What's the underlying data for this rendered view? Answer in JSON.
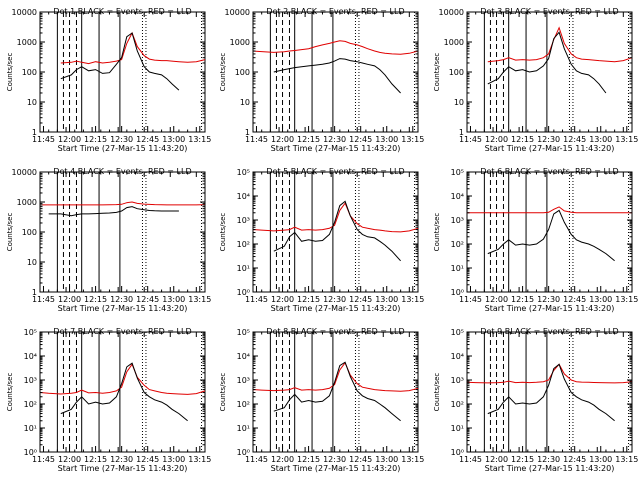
{
  "figure": {
    "xtick_labels": [
      "11:45",
      "12:00",
      "12:15",
      "12:30",
      "12:45",
      "13:00",
      "13:15"
    ],
    "xlabel": "Start Time (27-Mar-15 11:43:20)",
    "ylabel": "Counts/sec",
    "colors": {
      "events": "#000000",
      "lld": "#e00000",
      "axes": "#000000"
    }
  },
  "chart_data": [
    {
      "type": "line",
      "title": "Det 1  BLACK = Events,  RED = LLD",
      "xlabel": "Start Time (27-Mar-15 11:43:20)",
      "ylabel": "Counts/sec",
      "xlim": [
        0,
        95
      ],
      "ylim": [
        1,
        10000
      ],
      "log_y": true,
      "yticks": [
        1,
        10,
        100,
        1000,
        10000
      ],
      "ytick_labels": [
        "1",
        "10",
        "100",
        "1000",
        "10000"
      ],
      "x": [
        0,
        5,
        12,
        18,
        21,
        24,
        28,
        32,
        36,
        40,
        44,
        47,
        50,
        53,
        56,
        60,
        63,
        66,
        70,
        73,
        76,
        80,
        85,
        90,
        95
      ],
      "series": [
        {
          "name": "Events",
          "color": "#000000",
          "values": [
            null,
            null,
            60,
            80,
            120,
            150,
            110,
            120,
            90,
            95,
            180,
            300,
            1500,
            2000,
            500,
            150,
            100,
            90,
            80,
            60,
            40,
            25,
            null,
            null,
            null
          ]
        },
        {
          "name": "LLD",
          "color": "#e00000",
          "values": [
            null,
            null,
            200,
            210,
            230,
            210,
            190,
            220,
            200,
            210,
            230,
            260,
            900,
            2000,
            700,
            350,
            270,
            250,
            240,
            240,
            230,
            220,
            210,
            220,
            260
          ]
        }
      ]
    },
    {
      "type": "line",
      "title": "Det 2  BLACK = Events,  RED = LLD",
      "xlabel": "Start Time (27-Mar-15 11:43:20)",
      "ylabel": "Counts/sec",
      "xlim": [
        0,
        95
      ],
      "ylim": [
        1,
        10000
      ],
      "log_y": true,
      "yticks": [
        1,
        10,
        100,
        1000,
        10000
      ],
      "ytick_labels": [
        "1",
        "10",
        "100",
        "1000",
        "10000"
      ],
      "x": [
        0,
        5,
        12,
        18,
        21,
        24,
        28,
        32,
        36,
        40,
        44,
        47,
        50,
        53,
        56,
        60,
        63,
        66,
        70,
        73,
        76,
        80,
        85,
        90,
        95
      ],
      "series": [
        {
          "name": "Events",
          "color": "#000000",
          "values": [
            null,
            null,
            100,
            120,
            130,
            140,
            150,
            160,
            170,
            180,
            200,
            230,
            280,
            270,
            240,
            220,
            200,
            180,
            160,
            120,
            80,
            40,
            20,
            null,
            null
          ]
        },
        {
          "name": "LLD",
          "color": "#e00000",
          "values": [
            500,
            480,
            450,
            470,
            500,
            520,
            560,
            600,
            700,
            800,
            900,
            1000,
            1100,
            1050,
            900,
            800,
            700,
            600,
            500,
            450,
            420,
            400,
            390,
            420,
            500
          ]
        }
      ]
    },
    {
      "type": "line",
      "title": "Det 3  BLACK = Events,  RED = LLD",
      "xlabel": "Start Time (27-Mar-15 11:43:20)",
      "ylabel": "Counts/sec",
      "xlim": [
        0,
        95
      ],
      "ylim": [
        1,
        10000
      ],
      "log_y": true,
      "yticks": [
        1,
        10,
        100,
        1000,
        10000
      ],
      "ytick_labels": [
        "1",
        "10",
        "100",
        "1000",
        "10000"
      ],
      "x": [
        0,
        5,
        12,
        18,
        21,
        24,
        28,
        32,
        36,
        40,
        44,
        47,
        50,
        53,
        56,
        60,
        63,
        66,
        70,
        73,
        76,
        80,
        85,
        90,
        95
      ],
      "series": [
        {
          "name": "Events",
          "color": "#000000",
          "values": [
            null,
            null,
            40,
            60,
            100,
            150,
            110,
            120,
            100,
            110,
            160,
            280,
            1300,
            2100,
            600,
            180,
            110,
            90,
            80,
            60,
            40,
            20,
            null,
            null,
            null
          ]
        },
        {
          "name": "LLD",
          "color": "#e00000",
          "values": [
            null,
            null,
            220,
            240,
            260,
            300,
            250,
            260,
            250,
            260,
            300,
            400,
            1200,
            3000,
            900,
            400,
            300,
            270,
            260,
            250,
            240,
            230,
            220,
            240,
            300
          ]
        }
      ]
    },
    {
      "type": "line",
      "title": "Det 4  BLACK = Events,  RED = LLD",
      "xlabel": "Start Time (27-Mar-15 11:43:20)",
      "ylabel": "Counts/sec",
      "xlim": [
        0,
        95
      ],
      "ylim": [
        1,
        10000
      ],
      "log_y": true,
      "yticks": [
        1,
        10,
        100,
        1000,
        10000
      ],
      "ytick_labels": [
        "1",
        "10",
        "100",
        "1000",
        "10000"
      ],
      "x": [
        0,
        5,
        12,
        18,
        21,
        24,
        28,
        32,
        36,
        40,
        44,
        47,
        50,
        53,
        56,
        60,
        63,
        66,
        70,
        73,
        76,
        80,
        85,
        90,
        95
      ],
      "series": [
        {
          "name": "Events",
          "color": "#000000",
          "values": [
            null,
            400,
            400,
            350,
            380,
            400,
            400,
            410,
            420,
            430,
            450,
            500,
            650,
            700,
            600,
            550,
            520,
            510,
            500,
            500,
            500,
            500,
            null,
            null,
            null
          ]
        },
        {
          "name": "LLD",
          "color": "#e00000",
          "values": [
            800,
            800,
            800,
            800,
            800,
            800,
            800,
            800,
            800,
            810,
            820,
            840,
            950,
            1000,
            900,
            850,
            830,
            820,
            810,
            800,
            800,
            800,
            800,
            800,
            820
          ]
        }
      ]
    },
    {
      "type": "line",
      "title": "Det 5  BLACK = Events,  RED = LLD",
      "xlabel": "Start Time (27-Mar-15 11:43:20)",
      "ylabel": "Counts/sec",
      "xlim": [
        0,
        95
      ],
      "ylim": [
        1,
        100000
      ],
      "log_y": true,
      "yticks": [
        1,
        10,
        100,
        1000,
        10000,
        100000
      ],
      "ytick_labels": [
        "10⁰",
        "10¹",
        "10²",
        "10³",
        "10⁴",
        "10⁵"
      ],
      "x": [
        0,
        5,
        12,
        18,
        21,
        24,
        28,
        32,
        36,
        40,
        44,
        47,
        50,
        53,
        56,
        60,
        63,
        66,
        70,
        73,
        76,
        80,
        85,
        90,
        95
      ],
      "series": [
        {
          "name": "Events",
          "color": "#000000",
          "values": [
            null,
            null,
            50,
            80,
            200,
            300,
            130,
            150,
            130,
            140,
            250,
            800,
            4000,
            6000,
            1500,
            400,
            250,
            200,
            180,
            130,
            90,
            50,
            20,
            null,
            null
          ]
        },
        {
          "name": "LLD",
          "color": "#e00000",
          "values": [
            400,
            380,
            350,
            380,
            400,
            500,
            380,
            400,
            380,
            400,
            450,
            600,
            2500,
            5000,
            1500,
            700,
            500,
            450,
            400,
            380,
            350,
            330,
            320,
            350,
            450
          ]
        }
      ]
    },
    {
      "type": "line",
      "title": "Det 6  BLACK = Events,  RED = LLD",
      "xlabel": "Start Time (27-Mar-15 11:43:20)",
      "ylabel": "Counts/sec",
      "xlim": [
        0,
        95
      ],
      "ylim": [
        1,
        100000
      ],
      "log_y": true,
      "yticks": [
        1,
        10,
        100,
        1000,
        10000,
        100000
      ],
      "ytick_labels": [
        "10⁰",
        "10¹",
        "10²",
        "10³",
        "10⁴",
        "10⁵"
      ],
      "x": [
        0,
        5,
        12,
        18,
        21,
        24,
        28,
        32,
        36,
        40,
        44,
        47,
        50,
        53,
        56,
        60,
        63,
        66,
        70,
        73,
        76,
        80,
        85,
        90,
        95
      ],
      "series": [
        {
          "name": "Events",
          "color": "#000000",
          "values": [
            null,
            null,
            40,
            60,
            100,
            150,
            90,
            100,
            90,
            100,
            160,
            400,
            1800,
            2500,
            800,
            250,
            150,
            120,
            100,
            80,
            60,
            40,
            20,
            null,
            null
          ]
        },
        {
          "name": "LLD",
          "color": "#e00000",
          "values": [
            2000,
            2000,
            2000,
            2000,
            2000,
            2000,
            2000,
            2000,
            2000,
            2000,
            2000,
            2100,
            2800,
            3500,
            2400,
            2100,
            2000,
            2000,
            2000,
            2000,
            2000,
            2000,
            2000,
            2000,
            2000
          ]
        }
      ]
    },
    {
      "type": "line",
      "title": "Det 7  BLACK = Events,  RED = LLD",
      "xlabel": "Start Time (27-Mar-15 11:43:20)",
      "ylabel": "Counts/sec",
      "xlim": [
        0,
        95
      ],
      "ylim": [
        1,
        100000
      ],
      "log_y": true,
      "yticks": [
        1,
        10,
        100,
        1000,
        10000,
        100000
      ],
      "ytick_labels": [
        "10⁰",
        "10¹",
        "10²",
        "10³",
        "10⁴",
        "10⁵"
      ],
      "x": [
        0,
        5,
        12,
        18,
        21,
        24,
        28,
        32,
        36,
        40,
        44,
        47,
        50,
        53,
        56,
        60,
        63,
        66,
        70,
        73,
        76,
        80,
        85,
        90,
        95
      ],
      "series": [
        {
          "name": "Events",
          "color": "#000000",
          "values": [
            null,
            null,
            40,
            60,
            120,
            200,
            100,
            120,
            100,
            110,
            200,
            700,
            3500,
            5000,
            1200,
            300,
            200,
            150,
            120,
            90,
            60,
            40,
            20,
            null,
            null
          ]
        },
        {
          "name": "LLD",
          "color": "#e00000",
          "values": [
            300,
            280,
            260,
            280,
            300,
            380,
            290,
            300,
            280,
            300,
            350,
            500,
            2200,
            4500,
            1300,
            600,
            400,
            350,
            300,
            280,
            270,
            260,
            250,
            270,
            350
          ]
        }
      ]
    },
    {
      "type": "line",
      "title": "Det 8  BLACK = Events,  RED = LLD",
      "xlabel": "Start Time (27-Mar-15 11:43:20)",
      "ylabel": "Counts/sec",
      "xlim": [
        0,
        95
      ],
      "ylim": [
        1,
        100000
      ],
      "log_y": true,
      "yticks": [
        1,
        10,
        100,
        1000,
        10000,
        100000
      ],
      "ytick_labels": [
        "10⁰",
        "10¹",
        "10²",
        "10³",
        "10⁴",
        "10⁵"
      ],
      "x": [
        0,
        5,
        12,
        18,
        21,
        24,
        28,
        32,
        36,
        40,
        44,
        47,
        50,
        53,
        56,
        60,
        63,
        66,
        70,
        73,
        76,
        80,
        85,
        90,
        95
      ],
      "series": [
        {
          "name": "Events",
          "color": "#000000",
          "values": [
            null,
            null,
            50,
            70,
            150,
            250,
            120,
            140,
            120,
            130,
            220,
            800,
            4000,
            5500,
            1400,
            350,
            220,
            170,
            140,
            100,
            70,
            40,
            20,
            null,
            null
          ]
        },
        {
          "name": "LLD",
          "color": "#e00000",
          "values": [
            400,
            380,
            360,
            380,
            400,
            480,
            380,
            400,
            380,
            400,
            450,
            650,
            2600,
            5200,
            1600,
            700,
            500,
            450,
            400,
            380,
            360,
            350,
            340,
            360,
            450
          ]
        }
      ]
    },
    {
      "type": "line",
      "title": "Det 9  BLACK = Events,  RED = LLD",
      "xlabel": "Start Time (27-Mar-15 11:43:20)",
      "ylabel": "Counts/sec",
      "xlim": [
        0,
        95
      ],
      "ylim": [
        1,
        100000
      ],
      "log_y": true,
      "yticks": [
        1,
        10,
        100,
        1000,
        10000,
        100000
      ],
      "ytick_labels": [
        "10⁰",
        "10¹",
        "10²",
        "10³",
        "10⁴",
        "10⁵"
      ],
      "x": [
        0,
        5,
        12,
        18,
        21,
        24,
        28,
        32,
        36,
        40,
        44,
        47,
        50,
        53,
        56,
        60,
        63,
        66,
        70,
        73,
        76,
        80,
        85,
        90,
        95
      ],
      "series": [
        {
          "name": "Events",
          "color": "#000000",
          "values": [
            null,
            null,
            40,
            60,
            120,
            200,
            100,
            110,
            100,
            110,
            200,
            600,
            3000,
            4500,
            1100,
            300,
            200,
            150,
            120,
            90,
            60,
            40,
            20,
            null,
            null
          ]
        },
        {
          "name": "LLD",
          "color": "#e00000",
          "values": [
            800,
            780,
            760,
            780,
            800,
            900,
            780,
            800,
            780,
            800,
            850,
            1000,
            2500,
            4500,
            1800,
            1000,
            850,
            820,
            800,
            790,
            780,
            770,
            760,
            780,
            850
          ]
        }
      ]
    }
  ]
}
